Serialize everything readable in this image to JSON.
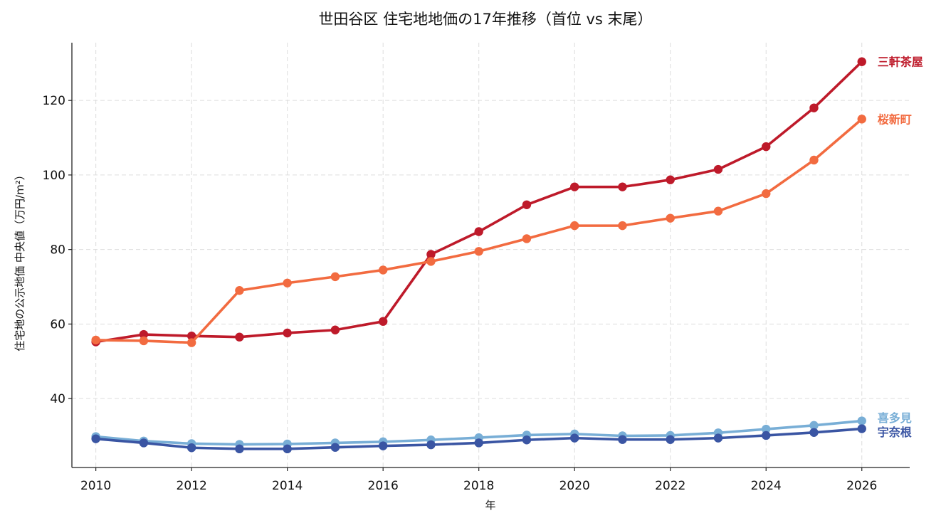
{
  "chart_data": {
    "type": "line",
    "title": "世田谷区 住宅地地価の17年推移（首位 vs 末尾）",
    "xlabel": "年",
    "ylabel": "住宅地の公示地価 中央値（万円/m²）",
    "x": [
      2010,
      2011,
      2012,
      2013,
      2014,
      2015,
      2016,
      2017,
      2018,
      2019,
      2020,
      2021,
      2022,
      2023,
      2024,
      2025,
      2026
    ],
    "xlim": [
      2009.5,
      2027
    ],
    "ylim": [
      21.5,
      135.5
    ],
    "xticks": [
      2010,
      2012,
      2014,
      2016,
      2018,
      2020,
      2022,
      2024,
      2026
    ],
    "yticks": [
      40,
      60,
      80,
      100,
      120
    ],
    "grid": true,
    "legend": "none",
    "series": [
      {
        "name": "三軒茶屋",
        "color": "#be1a2a",
        "values": [
          55.2,
          57.2,
          56.8,
          56.5,
          57.6,
          58.4,
          60.7,
          78.7,
          84.8,
          92.0,
          96.8,
          96.8,
          98.7,
          101.5,
          107.6,
          118.0,
          130.4
        ]
      },
      {
        "name": "桜新町",
        "color": "#f26b40",
        "values": [
          55.7,
          55.5,
          55.0,
          69.0,
          71.0,
          72.7,
          74.5,
          76.8,
          79.5,
          82.9,
          86.4,
          86.4,
          88.4,
          90.3,
          95.0,
          104.0,
          115.0
        ]
      },
      {
        "name": "喜多見",
        "color": "#78aed6",
        "values": [
          29.8,
          28.6,
          27.9,
          27.7,
          27.8,
          28.1,
          28.4,
          28.9,
          29.5,
          30.2,
          30.5,
          30.0,
          30.1,
          30.8,
          31.8,
          32.8,
          34.0
        ]
      },
      {
        "name": "宇奈根",
        "color": "#3a55a3",
        "values": [
          29.2,
          28.1,
          26.8,
          26.5,
          26.5,
          26.9,
          27.3,
          27.6,
          28.1,
          28.9,
          29.4,
          29.0,
          29.0,
          29.4,
          30.1,
          30.9,
          31.9
        ]
      }
    ]
  }
}
